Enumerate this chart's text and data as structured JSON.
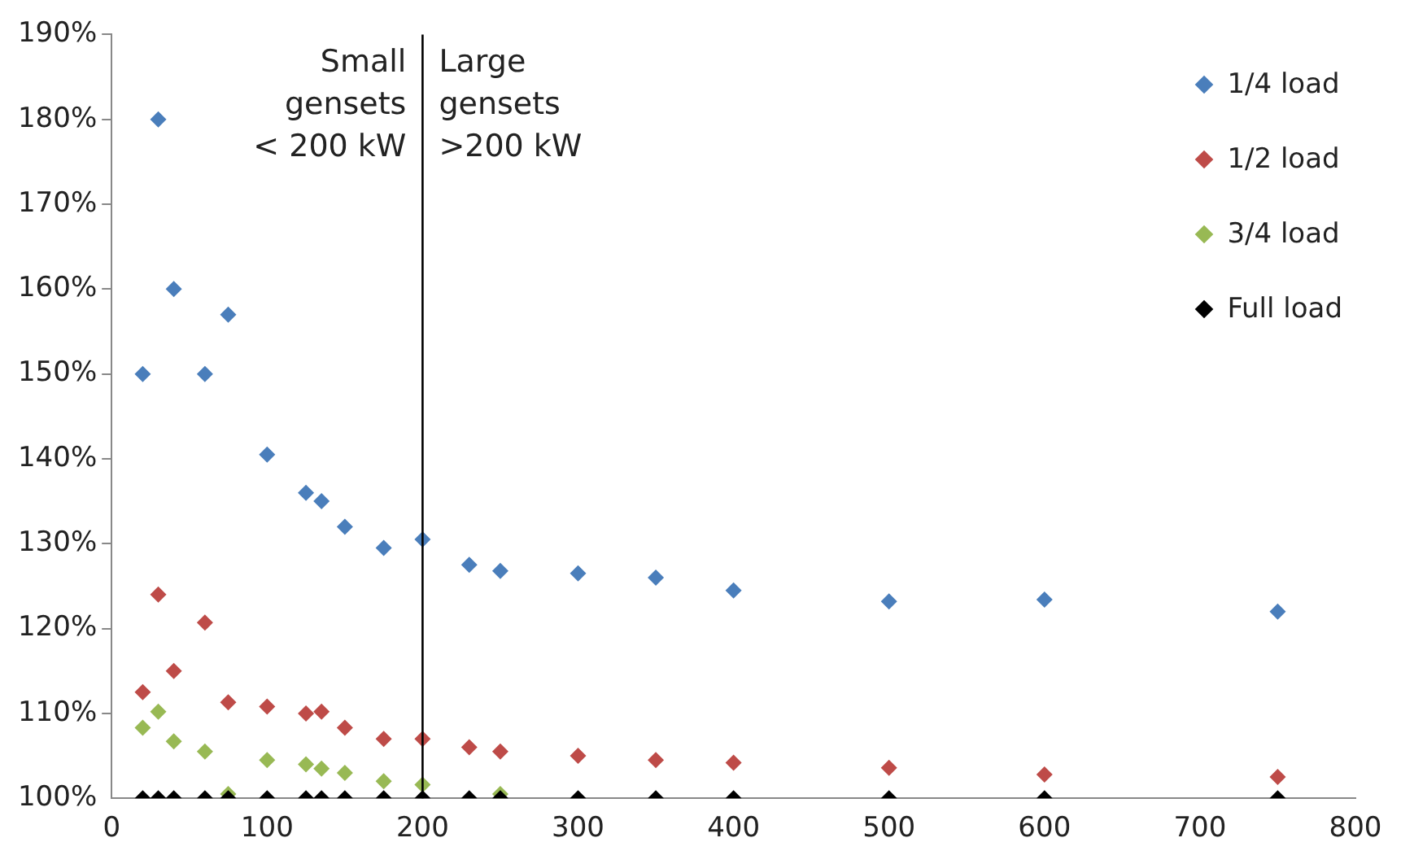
{
  "chart_data": {
    "type": "scatter",
    "marker": "diamond",
    "legend": "top right",
    "grid": false,
    "x": [
      20,
      30,
      40,
      60,
      75,
      100,
      125,
      135,
      150,
      175,
      200,
      230,
      250,
      300,
      350,
      400,
      500,
      600,
      750
    ],
    "series": [
      {
        "name": "1/4 load",
        "color": "#4a7ebb",
        "values": [
          150,
          180,
          160,
          150,
          157,
          140.5,
          136,
          135,
          132,
          129.5,
          130.5,
          127.5,
          126.8,
          126.5,
          126,
          124.5,
          123.2,
          123.4,
          122
        ]
      },
      {
        "name": "1/2 load",
        "color": "#be4b48",
        "values": [
          112.5,
          124,
          115,
          120.7,
          111.3,
          110.8,
          110,
          110.2,
          108.3,
          107,
          107,
          106,
          105.5,
          105,
          104.5,
          104.2,
          103.6,
          102.8,
          102.5
        ]
      },
      {
        "name": "3/4 load",
        "color": "#98b954",
        "values": [
          108.3,
          110.2,
          106.7,
          105.5,
          100.5,
          104.5,
          104,
          103.5,
          103,
          102,
          101.6,
          null,
          100.5,
          null,
          null,
          null,
          null,
          null,
          null
        ]
      },
      {
        "name": "Full load",
        "color": "#000000",
        "values": [
          100,
          100,
          100,
          100,
          100,
          100,
          100,
          100,
          100,
          100,
          100,
          100,
          100,
          100,
          100,
          100,
          100,
          100,
          100
        ]
      }
    ],
    "xlim": [
      0,
      800
    ],
    "xticks": [
      0,
      100,
      200,
      300,
      400,
      500,
      600,
      700,
      800
    ],
    "ylim": [
      100,
      190
    ],
    "yticks": [
      {
        "value": 100,
        "label": "100%"
      },
      {
        "value": 110,
        "label": "110%"
      },
      {
        "value": 120,
        "label": "120%"
      },
      {
        "value": 130,
        "label": "130%"
      },
      {
        "value": 140,
        "label": "140%"
      },
      {
        "value": 150,
        "label": "150%"
      },
      {
        "value": 160,
        "label": "160%"
      },
      {
        "value": 170,
        "label": "170%"
      },
      {
        "value": 180,
        "label": "180%"
      },
      {
        "value": 190,
        "label": "190%"
      }
    ],
    "ref_lines": [
      {
        "axis": "x",
        "value": 200,
        "color": "#000000"
      }
    ],
    "annotations": [
      "Small\ngensets\n< 200 kW",
      "Large\ngensets\n>200 kW"
    ]
  }
}
